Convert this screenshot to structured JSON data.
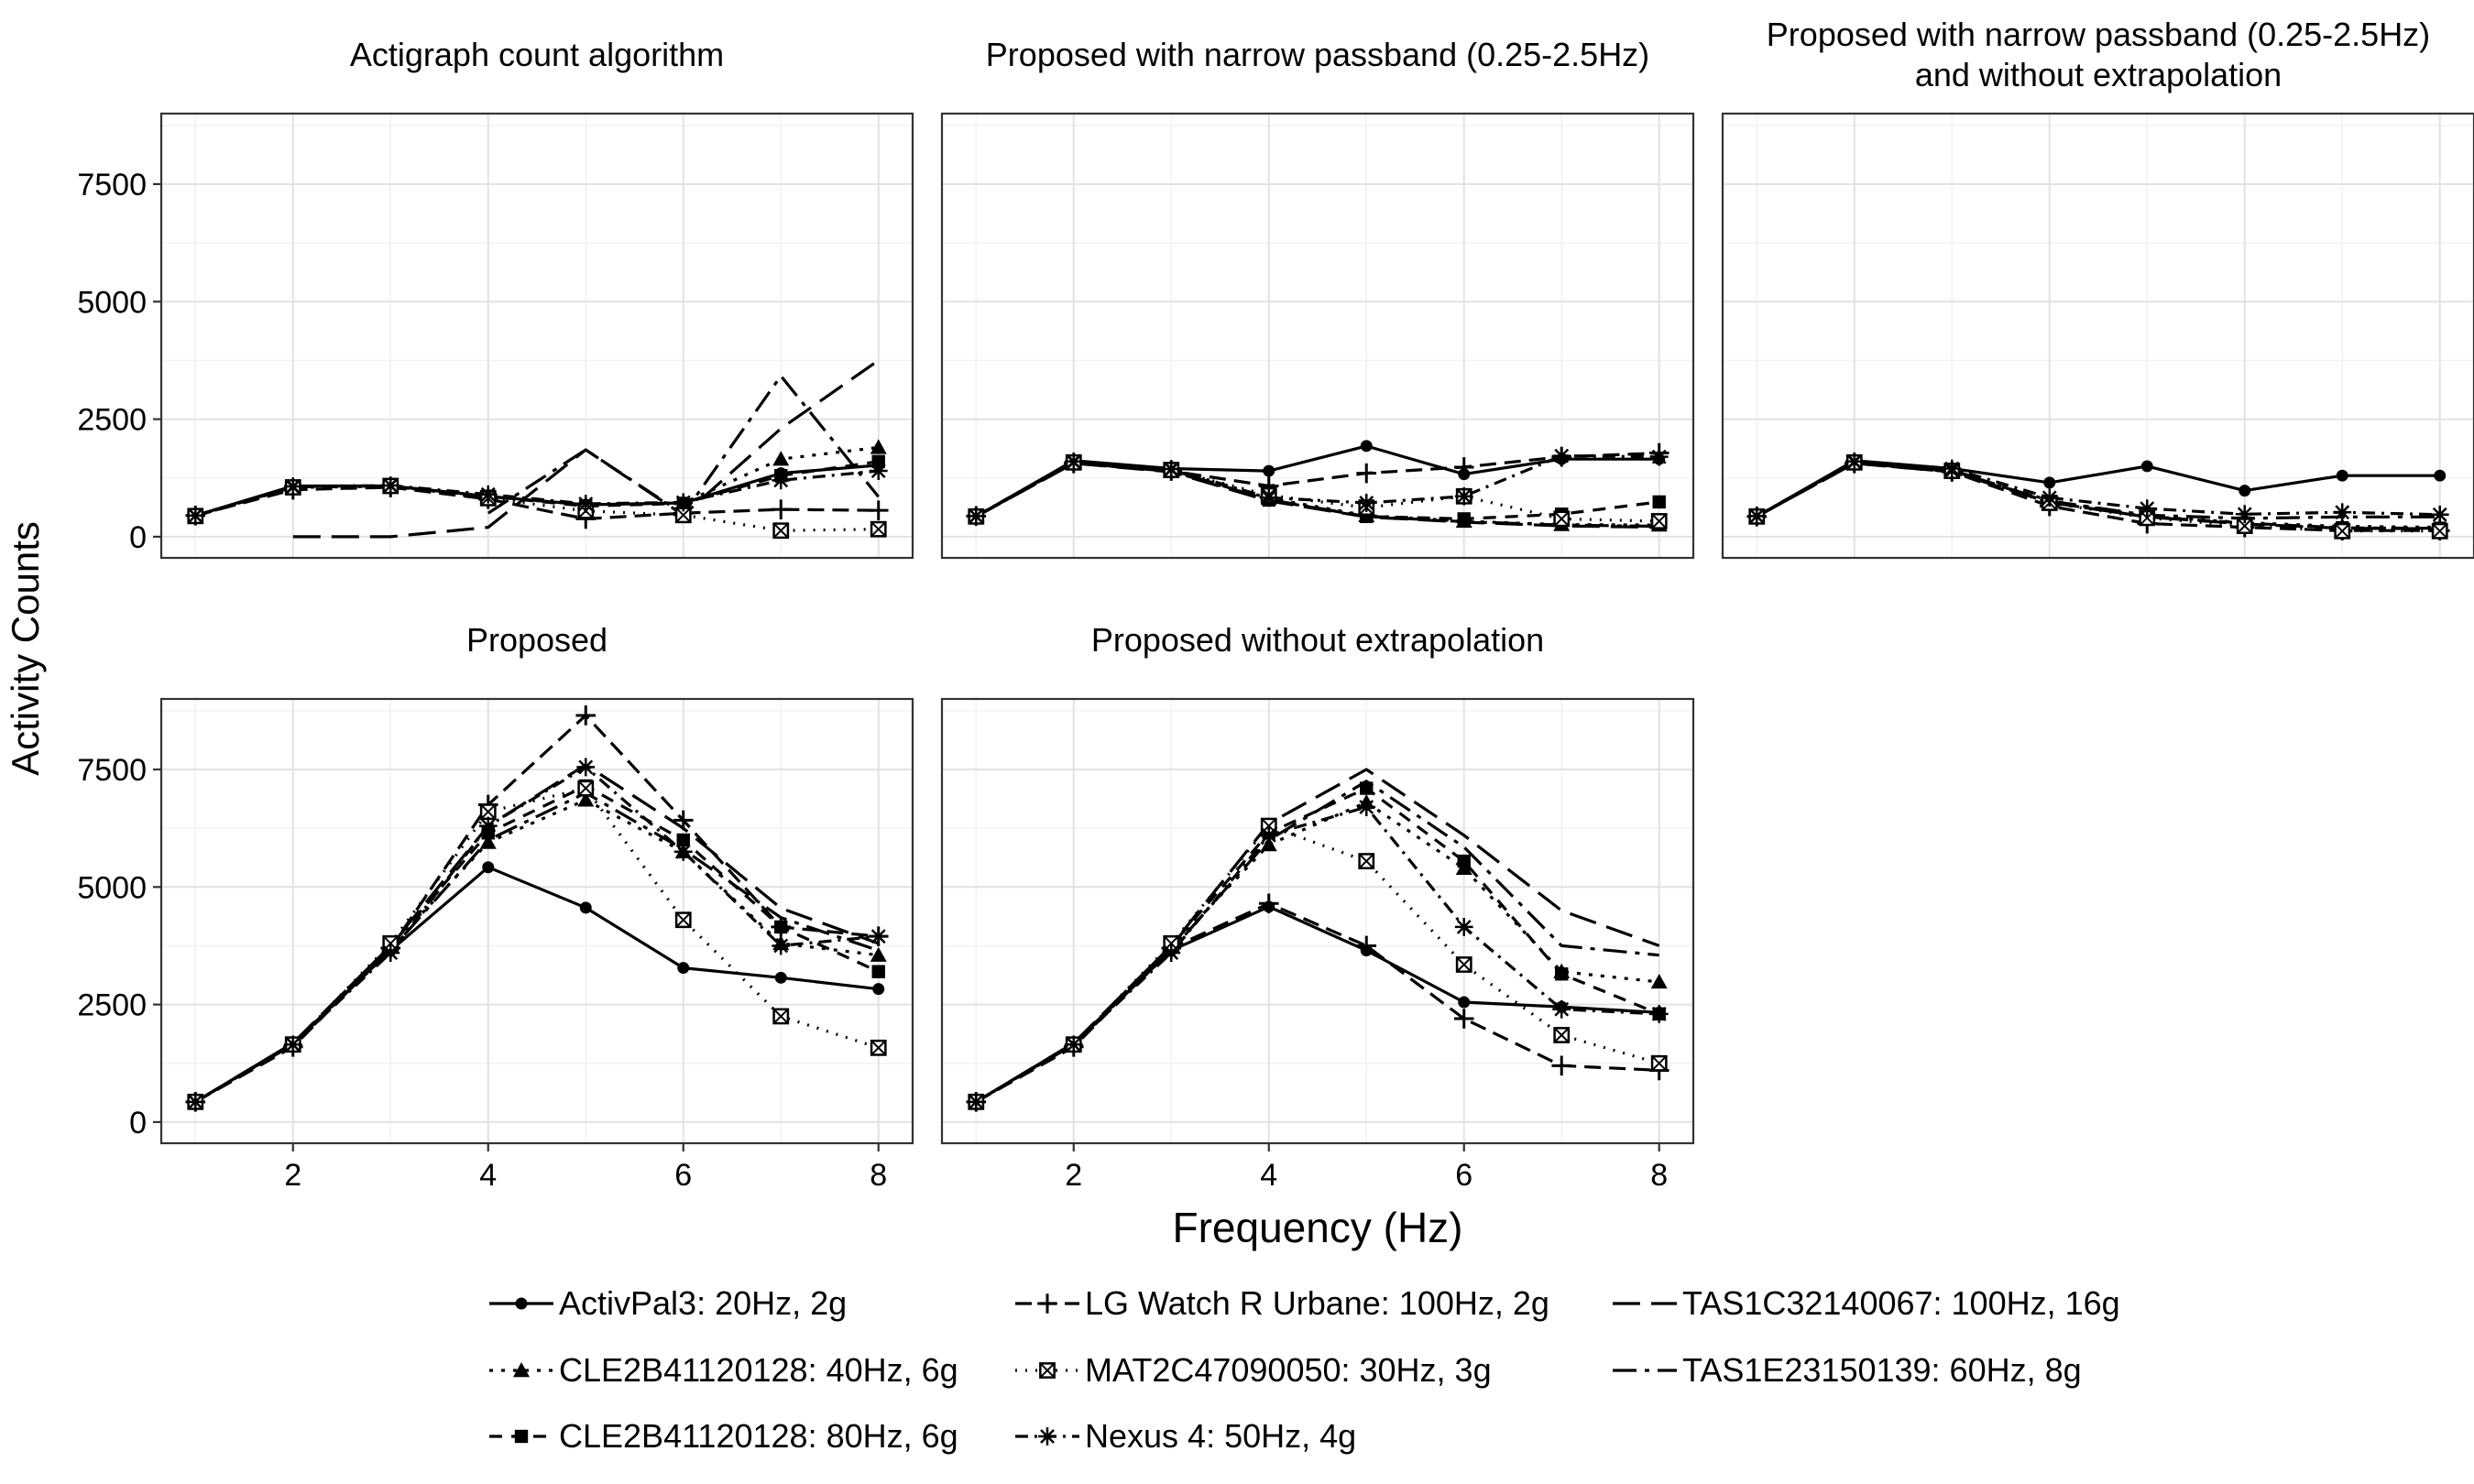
{
  "figure": {
    "ylabel": "Activity Counts",
    "xlabel": "Frequency (Hz)"
  },
  "styles": {
    "ActivPal3: 20Hz, 2g": {
      "dash": "",
      "marker": "circle"
    },
    "CLE2B41120128: 40Hz, 6g": {
      "dash": "4 9",
      "marker": "triangle"
    },
    "CLE2B41120128: 80Hz, 6g": {
      "dash": "14 10",
      "marker": "square"
    },
    "LG Watch R Urbane: 100Hz, 2g": {
      "dash": "18 9",
      "marker": "plus"
    },
    "MAT2C47090050: 30Hz, 3g": {
      "dash": "2 9",
      "marker": "boxx"
    },
    "Nexus 4: 50Hz, 4g": {
      "dash": "14 7 3 7",
      "marker": "asterisk"
    },
    "TAS1C32140067: 100Hz, 16g": {
      "dash": "30 12",
      "marker": "none"
    },
    "TAS1E23150139: 60Hz, 8g": {
      "dash": "26 9 5 9",
      "marker": "none"
    }
  },
  "legend": {
    "items": [
      "ActivPal3: 20Hz, 2g",
      "CLE2B41120128: 40Hz, 6g",
      "CLE2B41120128: 80Hz, 6g",
      "LG Watch R Urbane: 100Hz, 2g",
      "MAT2C47090050: 30Hz, 3g",
      "Nexus 4: 50Hz, 4g",
      "TAS1C32140067: 100Hz, 16g",
      "TAS1E23150139: 60Hz, 8g"
    ]
  },
  "chart_data": [
    {
      "type": "line",
      "title": "Actigraph count algorithm",
      "xlim": [
        0.65,
        8.35
      ],
      "ylim": [
        -450,
        9000
      ],
      "xticks": [
        2,
        4,
        6,
        8
      ],
      "yticks": [
        0,
        2500,
        5000,
        7500
      ],
      "grid": true,
      "series": [
        {
          "name": "ActivPal3: 20Hz, 2g",
          "x": [
            1,
            2,
            3,
            4,
            5,
            6,
            7,
            8
          ],
          "y": [
            450,
            1080,
            1080,
            860,
            680,
            720,
            1350,
            1520
          ]
        },
        {
          "name": "CLE2B41120128: 40Hz, 6g",
          "x": [
            1,
            2,
            3,
            4,
            5,
            6,
            7,
            8
          ],
          "y": [
            440,
            1050,
            1070,
            850,
            680,
            720,
            1650,
            1900
          ]
        },
        {
          "name": "CLE2B41120128: 80Hz, 6g",
          "x": [
            1,
            2,
            3,
            4,
            5,
            6,
            7,
            8
          ],
          "y": [
            440,
            1060,
            1080,
            860,
            650,
            710,
            1300,
            1600
          ]
        },
        {
          "name": "LG Watch R Urbane: 100Hz, 2g",
          "x": [
            1,
            2,
            3,
            4,
            5,
            6,
            7,
            8
          ],
          "y": [
            450,
            1000,
            1050,
            800,
            380,
            500,
            580,
            560
          ]
        },
        {
          "name": "MAT2C47090050: 30Hz, 3g",
          "x": [
            1,
            2,
            3,
            4,
            5,
            6,
            7,
            8
          ],
          "y": [
            440,
            1050,
            1080,
            820,
            550,
            460,
            130,
            160
          ]
        },
        {
          "name": "Nexus 4: 50Hz, 4g",
          "x": [
            1,
            2,
            3,
            4,
            5,
            6,
            7,
            8
          ],
          "y": [
            450,
            1070,
            1090,
            900,
            700,
            730,
            1200,
            1400
          ]
        },
        {
          "name": "TAS1C32140067: 100Hz, 16g",
          "x": [
            2,
            3,
            4,
            5,
            6,
            7,
            8
          ],
          "y": [
            0,
            0,
            200,
            1850,
            460,
            2300,
            3750
          ]
        },
        {
          "name": "TAS1E23150139: 60Hz, 8g",
          "x": [
            4,
            5,
            6,
            7,
            8
          ],
          "y": [
            500,
            1850,
            480,
            3420,
            850
          ]
        }
      ]
    },
    {
      "type": "line",
      "title": "Proposed with narrow passband (0.25-2.5Hz)",
      "xlim": [
        0.65,
        8.35
      ],
      "ylim": [
        -450,
        9000
      ],
      "xticks": [
        2,
        4,
        6,
        8
      ],
      "yticks": [
        0,
        2500,
        5000,
        7500
      ],
      "grid": true,
      "series": [
        {
          "name": "ActivPal3: 20Hz, 2g",
          "x": [
            1,
            2,
            3,
            4,
            5,
            6,
            7,
            8
          ],
          "y": [
            430,
            1620,
            1450,
            1400,
            1930,
            1330,
            1650,
            1650
          ]
        },
        {
          "name": "CLE2B41120128: 40Hz, 6g",
          "x": [
            1,
            2,
            3,
            4,
            5,
            6,
            7,
            8
          ],
          "y": [
            430,
            1580,
            1400,
            820,
            450,
            330,
            260,
            250
          ]
        },
        {
          "name": "CLE2B41120128: 80Hz, 6g",
          "x": [
            1,
            2,
            3,
            4,
            5,
            6,
            7,
            8
          ],
          "y": [
            430,
            1600,
            1420,
            780,
            430,
            380,
            480,
            740
          ]
        },
        {
          "name": "LG Watch R Urbane: 100Hz, 2g",
          "x": [
            1,
            2,
            3,
            4,
            5,
            6,
            7,
            8
          ],
          "y": [
            440,
            1560,
            1400,
            1080,
            1350,
            1480,
            1700,
            1780
          ]
        },
        {
          "name": "MAT2C47090050: 30Hz, 3g",
          "x": [
            1,
            2,
            3,
            4,
            5,
            6,
            7,
            8
          ],
          "y": [
            430,
            1580,
            1420,
            880,
            620,
            860,
            380,
            330
          ]
        },
        {
          "name": "Nexus 4: 50Hz, 4g",
          "x": [
            1,
            2,
            3,
            4,
            5,
            6,
            7,
            8
          ],
          "y": [
            440,
            1600,
            1440,
            830,
            720,
            860,
            1720,
            1700
          ]
        },
        {
          "name": "TAS1C32140067: 100Hz, 16g",
          "x": [
            1,
            2,
            3,
            4,
            5,
            6,
            7,
            8
          ],
          "y": [
            430,
            1560,
            1380,
            760,
            420,
            310,
            230,
            200
          ]
        },
        {
          "name": "TAS1E23150139: 60Hz, 8g",
          "x": [
            1,
            2,
            3,
            4,
            5,
            6,
            7,
            8
          ],
          "y": [
            430,
            1570,
            1390,
            790,
            430,
            320,
            250,
            220
          ]
        }
      ]
    },
    {
      "type": "line",
      "title": "Proposed with narrow passband (0.25-2.5Hz) and without extrapolation",
      "title_lines": [
        "Proposed with narrow passband (0.25-2.5Hz)",
        "and without extrapolation"
      ],
      "xlim": [
        0.65,
        8.35
      ],
      "ylim": [
        -450,
        9000
      ],
      "xticks": [
        2,
        4,
        6,
        8
      ],
      "yticks": [
        0,
        2500,
        5000,
        7500
      ],
      "grid": true,
      "series": [
        {
          "name": "ActivPal3: 20Hz, 2g",
          "x": [
            1,
            2,
            3,
            4,
            5,
            6,
            7,
            8
          ],
          "y": [
            430,
            1620,
            1450,
            1150,
            1500,
            980,
            1300,
            1300
          ]
        },
        {
          "name": "CLE2B41120128: 40Hz, 6g",
          "x": [
            1,
            2,
            3,
            4,
            5,
            6,
            7,
            8
          ],
          "y": [
            430,
            1580,
            1400,
            770,
            430,
            300,
            220,
            200
          ]
        },
        {
          "name": "CLE2B41120128: 80Hz, 6g",
          "x": [
            1,
            2,
            3,
            4,
            5,
            6,
            7,
            8
          ],
          "y": [
            430,
            1600,
            1420,
            730,
            420,
            290,
            190,
            180
          ]
        },
        {
          "name": "LG Watch R Urbane: 100Hz, 2g",
          "x": [
            1,
            2,
            3,
            4,
            5,
            6,
            7,
            8
          ],
          "y": [
            430,
            1560,
            1380,
            650,
            280,
            200,
            130,
            130
          ]
        },
        {
          "name": "MAT2C47090050: 30Hz, 3g",
          "x": [
            1,
            2,
            3,
            4,
            5,
            6,
            7,
            8
          ],
          "y": [
            430,
            1580,
            1400,
            720,
            400,
            230,
            120,
            120
          ]
        },
        {
          "name": "Nexus 4: 50Hz, 4g",
          "x": [
            1,
            2,
            3,
            4,
            5,
            6,
            7,
            8
          ],
          "y": [
            440,
            1600,
            1450,
            830,
            600,
            480,
            520,
            470
          ]
        },
        {
          "name": "TAS1C32140067: 100Hz, 16g",
          "x": [
            1,
            2,
            3,
            4,
            5,
            6,
            7,
            8
          ],
          "y": [
            430,
            1560,
            1380,
            730,
            420,
            270,
            180,
            170
          ]
        },
        {
          "name": "TAS1E23150139: 60Hz, 8g",
          "x": [
            1,
            2,
            3,
            4,
            5,
            6,
            7,
            8
          ],
          "y": [
            430,
            1570,
            1390,
            760,
            460,
            390,
            420,
            420
          ]
        }
      ]
    },
    {
      "type": "line",
      "title": "Proposed",
      "xlim": [
        0.65,
        8.35
      ],
      "ylim": [
        -450,
        9000
      ],
      "xticks": [
        2,
        4,
        6,
        8
      ],
      "yticks": [
        0,
        2500,
        5000,
        7500
      ],
      "grid": true,
      "series": [
        {
          "name": "ActivPal3: 20Hz, 2g",
          "x": [
            1,
            2,
            3,
            4,
            5,
            6,
            7,
            8
          ],
          "y": [
            430,
            1680,
            3650,
            5420,
            4560,
            3280,
            3070,
            2830
          ]
        },
        {
          "name": "CLE2B41120128: 40Hz, 6g",
          "x": [
            1,
            2,
            3,
            4,
            5,
            6,
            7,
            8
          ],
          "y": [
            430,
            1650,
            3720,
            5950,
            6850,
            5750,
            3800,
            3550
          ]
        },
        {
          "name": "CLE2B41120128: 80Hz, 6g",
          "x": [
            1,
            2,
            3,
            4,
            5,
            6,
            7,
            8
          ],
          "y": [
            430,
            1670,
            3750,
            6150,
            7150,
            6000,
            4150,
            3200
          ]
        },
        {
          "name": "LG Watch R Urbane: 100Hz, 2g",
          "x": [
            1,
            2,
            3,
            4,
            5,
            6,
            7,
            8
          ],
          "y": [
            430,
            1600,
            3700,
            6750,
            8650,
            6420,
            4150,
            3950
          ]
        },
        {
          "name": "MAT2C47090050: 30Hz, 3g",
          "x": [
            1,
            2,
            3,
            4,
            5,
            6,
            7,
            8
          ],
          "y": [
            430,
            1650,
            3800,
            6600,
            7100,
            4300,
            2250,
            1580
          ]
        },
        {
          "name": "Nexus 4: 50Hz, 4g",
          "x": [
            1,
            2,
            3,
            4,
            5,
            6,
            7,
            8
          ],
          "y": [
            430,
            1650,
            3600,
            6300,
            7550,
            5750,
            3750,
            3950
          ]
        },
        {
          "name": "TAS1C32140067: 100Hz, 16g",
          "x": [
            1,
            2,
            3,
            4,
            5,
            6,
            7,
            8
          ],
          "y": [
            430,
            1680,
            3750,
            6300,
            7600,
            6250,
            4550,
            3800
          ]
        },
        {
          "name": "TAS1E23150139: 60Hz, 8g",
          "x": [
            1,
            2,
            3,
            4,
            5,
            6,
            7,
            8
          ],
          "y": [
            430,
            1660,
            3650,
            6000,
            7000,
            5800,
            4350,
            3650
          ]
        }
      ]
    },
    {
      "type": "line",
      "title": "Proposed without extrapolation",
      "xlim": [
        0.65,
        8.35
      ],
      "ylim": [
        -450,
        9000
      ],
      "xticks": [
        2,
        4,
        6,
        8
      ],
      "yticks": [
        0,
        2500,
        5000,
        7500
      ],
      "grid": true,
      "series": [
        {
          "name": "ActivPal3: 20Hz, 2g",
          "x": [
            1,
            2,
            3,
            4,
            5,
            6,
            7,
            8
          ],
          "y": [
            430,
            1680,
            3650,
            4580,
            3650,
            2550,
            2450,
            2330
          ]
        },
        {
          "name": "CLE2B41120128: 40Hz, 6g",
          "x": [
            1,
            2,
            3,
            4,
            5,
            6,
            7,
            8
          ],
          "y": [
            430,
            1650,
            3720,
            5900,
            6800,
            5400,
            3200,
            2980
          ]
        },
        {
          "name": "CLE2B41120128: 80Hz, 6g",
          "x": [
            1,
            2,
            3,
            4,
            5,
            6,
            7,
            8
          ],
          "y": [
            430,
            1670,
            3750,
            6150,
            7100,
            5550,
            3150,
            2300
          ]
        },
        {
          "name": "LG Watch R Urbane: 100Hz, 2g",
          "x": [
            1,
            2,
            3,
            4,
            5,
            6,
            7,
            8
          ],
          "y": [
            430,
            1600,
            3700,
            4650,
            3750,
            2200,
            1200,
            1100
          ]
        },
        {
          "name": "MAT2C47090050: 30Hz, 3g",
          "x": [
            1,
            2,
            3,
            4,
            5,
            6,
            7,
            8
          ],
          "y": [
            430,
            1650,
            3800,
            6300,
            5550,
            3350,
            1850,
            1250
          ]
        },
        {
          "name": "Nexus 4: 50Hz, 4g",
          "x": [
            1,
            2,
            3,
            4,
            5,
            6,
            7,
            8
          ],
          "y": [
            430,
            1650,
            3600,
            6100,
            6700,
            4150,
            2400,
            2300
          ]
        },
        {
          "name": "TAS1C32140067: 100Hz, 16g",
          "x": [
            1,
            2,
            3,
            4,
            5,
            6,
            7,
            8
          ],
          "y": [
            430,
            1680,
            3750,
            6350,
            7500,
            6100,
            4500,
            3750
          ]
        },
        {
          "name": "TAS1E23150139: 60Hz, 8g",
          "x": [
            1,
            2,
            3,
            4,
            5,
            6,
            7,
            8
          ],
          "y": [
            430,
            1660,
            3650,
            6000,
            7250,
            5850,
            3750,
            3550
          ]
        }
      ]
    }
  ]
}
